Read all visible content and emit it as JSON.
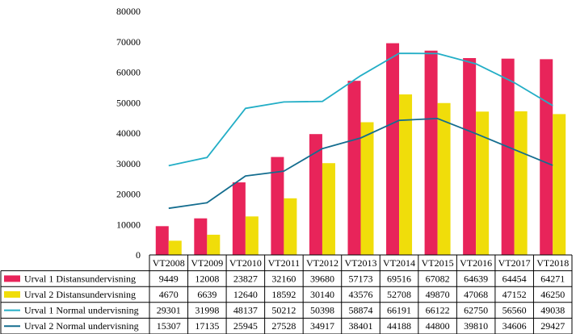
{
  "chart_data": {
    "type": "bar",
    "title": "",
    "xlabel": "",
    "ylabel": "",
    "ylim": [
      0,
      80000
    ],
    "yticks": [
      0,
      10000,
      20000,
      30000,
      40000,
      50000,
      60000,
      70000,
      80000
    ],
    "grid": false,
    "legend": "data-table-below",
    "categories": [
      "VT2008",
      "VT2009",
      "VT2010",
      "VT2011",
      "VT2012",
      "VT2013",
      "VT2014",
      "VT2015",
      "VT2016",
      "VT2017",
      "VT2018"
    ],
    "series": [
      {
        "name": "Urval 1 Distansundervisning",
        "kind": "bar",
        "color": "#e8245a",
        "values": [
          9449,
          12008,
          23827,
          32160,
          39680,
          57173,
          69516,
          67082,
          64639,
          64454,
          64271
        ]
      },
      {
        "name": "Urval 2 Distansundervisning",
        "kind": "bar",
        "color": "#f0dd0a",
        "values": [
          4670,
          6639,
          12640,
          18592,
          30140,
          43576,
          52708,
          49870,
          47068,
          47152,
          46250
        ]
      },
      {
        "name": "Urval 1 Normal undervisning",
        "kind": "line",
        "color": "#23aec6",
        "values": [
          29301,
          31998,
          48137,
          50212,
          50398,
          58874,
          66191,
          66122,
          62750,
          56560,
          49038
        ]
      },
      {
        "name": "Urval 2 Normal undervisning",
        "kind": "line",
        "color": "#146d8f",
        "values": [
          15307,
          17135,
          25945,
          27528,
          34917,
          38401,
          44188,
          44800,
          39810,
          34606,
          29427
        ]
      }
    ]
  }
}
